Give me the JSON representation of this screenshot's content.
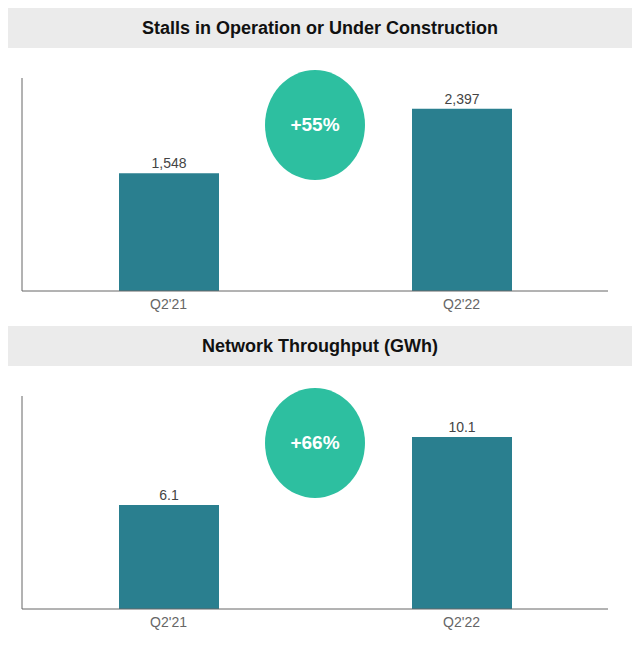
{
  "chart_data": [
    {
      "type": "bar",
      "title": "Stalls in Operation or Under Construction",
      "categories": [
        "Q2'21",
        "Q2'22"
      ],
      "values": [
        1548,
        2397
      ],
      "value_labels": [
        "1,548",
        "2,397"
      ],
      "data_labels": true,
      "color": "#2a7f8f",
      "ylim": [
        0,
        2800
      ],
      "tick_labels": "x",
      "annotations": [
        "+55%"
      ]
    },
    {
      "type": "bar",
      "title": "Network Throughput (GWh)",
      "categories": [
        "Q2'21",
        "Q2'22"
      ],
      "values": [
        6.1,
        10.1
      ],
      "value_labels": [
        "6.1",
        "10.1"
      ],
      "data_labels": true,
      "color": "#2a7f8f",
      "ylim": [
        0,
        12.5
      ],
      "tick_labels": "x",
      "annotations": [
        "+66%"
      ]
    }
  ]
}
